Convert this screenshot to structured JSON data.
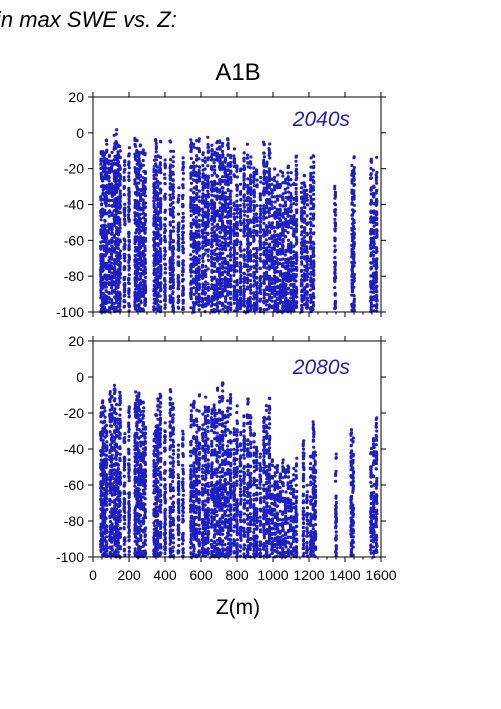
{
  "heading": "in max SWE vs. Z:",
  "chart_data": {
    "type": "scatter",
    "title": "A1B",
    "xlabel": "Z(m)",
    "ylabel": "",
    "xlim": [
      0,
      1600
    ],
    "ylim": [
      -100,
      20
    ],
    "x_ticks": [
      0,
      200,
      400,
      600,
      800,
      1000,
      1200,
      1400,
      1600
    ],
    "x_tick_labels": [
      "0",
      "200",
      "400",
      "600",
      "800",
      "1000",
      "1200",
      "1400",
      "1600"
    ],
    "y_ticks": [
      20,
      0,
      -20,
      -40,
      -60,
      -80,
      -100
    ],
    "y_tick_labels": [
      "20",
      "0",
      "-20",
      "-40",
      "-60",
      "-80",
      "-100"
    ],
    "marker_color": "#1f1fc0",
    "grid": false,
    "panels": [
      {
        "label": "2040s",
        "columns": [
          {
            "x": 45,
            "top": -5
          },
          {
            "x": 55,
            "top": -10
          },
          {
            "x": 65,
            "top": -8
          },
          {
            "x": 75,
            "top": -3
          },
          {
            "x": 90,
            "top": -12
          },
          {
            "x": 105,
            "top": -8
          },
          {
            "x": 120,
            "top": 1
          },
          {
            "x": 130,
            "top": 2
          },
          {
            "x": 140,
            "top": -5
          },
          {
            "x": 150,
            "top": -6
          },
          {
            "x": 175,
            "top": -15
          },
          {
            "x": 200,
            "top": -6
          },
          {
            "x": 235,
            "top": 0
          },
          {
            "x": 245,
            "top": -2
          },
          {
            "x": 255,
            "top": -8
          },
          {
            "x": 265,
            "top": -3
          },
          {
            "x": 280,
            "top": -5
          },
          {
            "x": 290,
            "top": -6
          },
          {
            "x": 340,
            "top": -5
          },
          {
            "x": 350,
            "top": -2
          },
          {
            "x": 360,
            "top": -8
          },
          {
            "x": 375,
            "top": -3
          },
          {
            "x": 400,
            "top": -15
          },
          {
            "x": 430,
            "top": -3
          },
          {
            "x": 445,
            "top": -6
          },
          {
            "x": 475,
            "top": -30
          },
          {
            "x": 500,
            "top": -12
          },
          {
            "x": 545,
            "top": -2
          },
          {
            "x": 560,
            "top": -5
          },
          {
            "x": 575,
            "top": -2
          },
          {
            "x": 590,
            "top": -3
          },
          {
            "x": 610,
            "top": -8
          },
          {
            "x": 625,
            "top": -12
          },
          {
            "x": 640,
            "top": -2
          },
          {
            "x": 660,
            "top": -5
          },
          {
            "x": 675,
            "top": -10
          },
          {
            "x": 690,
            "top": -3
          },
          {
            "x": 705,
            "top": 0
          },
          {
            "x": 720,
            "top": -5
          },
          {
            "x": 735,
            "top": -10
          },
          {
            "x": 750,
            "top": -2
          },
          {
            "x": 765,
            "top": -6
          },
          {
            "x": 785,
            "top": -8
          },
          {
            "x": 800,
            "top": -15
          },
          {
            "x": 820,
            "top": -20
          },
          {
            "x": 840,
            "top": -8
          },
          {
            "x": 860,
            "top": -2
          },
          {
            "x": 875,
            "top": -10
          },
          {
            "x": 895,
            "top": -15
          },
          {
            "x": 910,
            "top": -18
          },
          {
            "x": 930,
            "top": -20
          },
          {
            "x": 950,
            "top": -5
          },
          {
            "x": 965,
            "top": -10
          },
          {
            "x": 980,
            "top": -3
          },
          {
            "x": 995,
            "top": -25
          },
          {
            "x": 1010,
            "top": -20
          },
          {
            "x": 1025,
            "top": -22
          },
          {
            "x": 1040,
            "top": -20
          },
          {
            "x": 1055,
            "top": -22
          },
          {
            "x": 1070,
            "top": -20
          },
          {
            "x": 1085,
            "top": -18
          },
          {
            "x": 1100,
            "top": -20
          },
          {
            "x": 1115,
            "top": -25
          },
          {
            "x": 1130,
            "top": -8
          },
          {
            "x": 1160,
            "top": -28
          },
          {
            "x": 1175,
            "top": -20
          },
          {
            "x": 1190,
            "top": -30
          },
          {
            "x": 1210,
            "top": -12
          },
          {
            "x": 1225,
            "top": -10
          },
          {
            "x": 1345,
            "top": -25
          },
          {
            "x": 1440,
            "top": -18
          },
          {
            "x": 1450,
            "top": -8
          },
          {
            "x": 1545,
            "top": -10
          },
          {
            "x": 1560,
            "top": -20
          },
          {
            "x": 1575,
            "top": -8
          }
        ]
      },
      {
        "label": "2080s",
        "columns": [
          {
            "x": 45,
            "top": -15
          },
          {
            "x": 55,
            "top": -8
          },
          {
            "x": 65,
            "top": -12
          },
          {
            "x": 75,
            "top": -25
          },
          {
            "x": 95,
            "top": -5
          },
          {
            "x": 105,
            "top": -10
          },
          {
            "x": 120,
            "top": -2
          },
          {
            "x": 130,
            "top": -15
          },
          {
            "x": 140,
            "top": -20
          },
          {
            "x": 150,
            "top": -6
          },
          {
            "x": 175,
            "top": -30
          },
          {
            "x": 200,
            "top": -15
          },
          {
            "x": 235,
            "top": -5
          },
          {
            "x": 245,
            "top": -3
          },
          {
            "x": 255,
            "top": -8
          },
          {
            "x": 265,
            "top": -12
          },
          {
            "x": 280,
            "top": -10
          },
          {
            "x": 290,
            "top": -20
          },
          {
            "x": 340,
            "top": -30
          },
          {
            "x": 350,
            "top": -18
          },
          {
            "x": 360,
            "top": -8
          },
          {
            "x": 375,
            "top": -6
          },
          {
            "x": 400,
            "top": -20
          },
          {
            "x": 430,
            "top": -5
          },
          {
            "x": 445,
            "top": -12
          },
          {
            "x": 475,
            "top": -35
          },
          {
            "x": 500,
            "top": -30
          },
          {
            "x": 545,
            "top": -5
          },
          {
            "x": 560,
            "top": -10
          },
          {
            "x": 575,
            "top": -15
          },
          {
            "x": 590,
            "top": -8
          },
          {
            "x": 610,
            "top": -20
          },
          {
            "x": 625,
            "top": -6
          },
          {
            "x": 640,
            "top": -12
          },
          {
            "x": 660,
            "top": -10
          },
          {
            "x": 675,
            "top": -15
          },
          {
            "x": 690,
            "top": -5
          },
          {
            "x": 705,
            "top": -8
          },
          {
            "x": 720,
            "top": -3
          },
          {
            "x": 735,
            "top": -20
          },
          {
            "x": 750,
            "top": -12
          },
          {
            "x": 765,
            "top": -8
          },
          {
            "x": 785,
            "top": -25
          },
          {
            "x": 800,
            "top": -15
          },
          {
            "x": 820,
            "top": -30
          },
          {
            "x": 840,
            "top": -18
          },
          {
            "x": 860,
            "top": -10
          },
          {
            "x": 875,
            "top": -20
          },
          {
            "x": 895,
            "top": -28
          },
          {
            "x": 910,
            "top": -35
          },
          {
            "x": 930,
            "top": -40
          },
          {
            "x": 950,
            "top": -20
          },
          {
            "x": 965,
            "top": -15
          },
          {
            "x": 980,
            "top": -8
          },
          {
            "x": 995,
            "top": -45
          },
          {
            "x": 1010,
            "top": -50
          },
          {
            "x": 1025,
            "top": -48
          },
          {
            "x": 1040,
            "top": -52
          },
          {
            "x": 1055,
            "top": -45
          },
          {
            "x": 1070,
            "top": -50
          },
          {
            "x": 1085,
            "top": -48
          },
          {
            "x": 1100,
            "top": -55
          },
          {
            "x": 1115,
            "top": -50
          },
          {
            "x": 1130,
            "top": -45
          },
          {
            "x": 1170,
            "top": -32
          },
          {
            "x": 1190,
            "top": -55
          },
          {
            "x": 1210,
            "top": -42
          },
          {
            "x": 1225,
            "top": -22
          },
          {
            "x": 1235,
            "top": -40
          },
          {
            "x": 1350,
            "top": -42
          },
          {
            "x": 1435,
            "top": -28
          },
          {
            "x": 1445,
            "top": -30
          },
          {
            "x": 1545,
            "top": -38
          },
          {
            "x": 1560,
            "top": -30
          },
          {
            "x": 1575,
            "top": -20
          }
        ]
      }
    ]
  }
}
